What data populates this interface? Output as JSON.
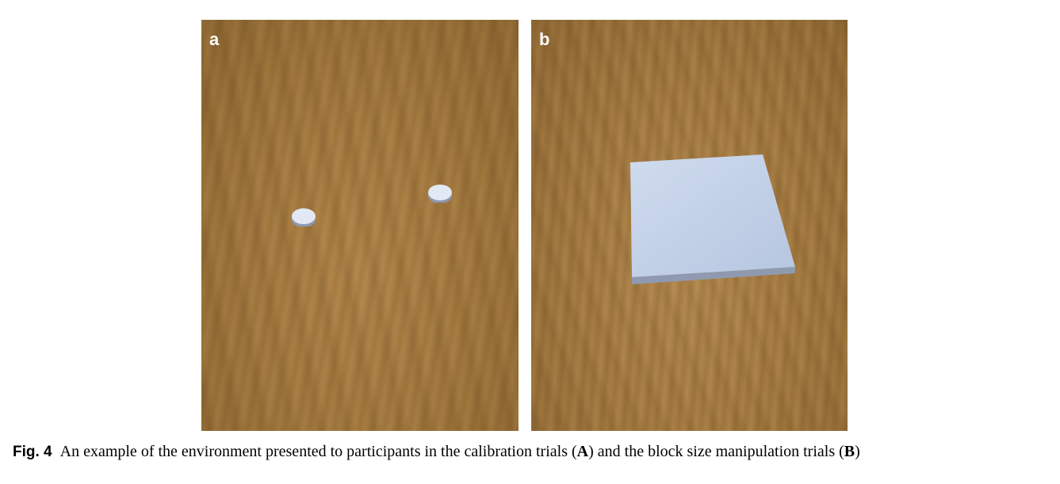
{
  "panels": [
    {
      "label": "a"
    },
    {
      "label": "b"
    }
  ],
  "caption": {
    "figure_label": "Fig. 4",
    "text_1": "An example of the environment presented to participants in the calibration trials (",
    "ref_a": "A",
    "text_2": ") and the block size manipulation trials (",
    "ref_b": "B",
    "text_3": ")"
  },
  "colors": {
    "wood": "#a47a40",
    "object_top": "#dbe4f2",
    "object_side": "#9aa6bb"
  }
}
